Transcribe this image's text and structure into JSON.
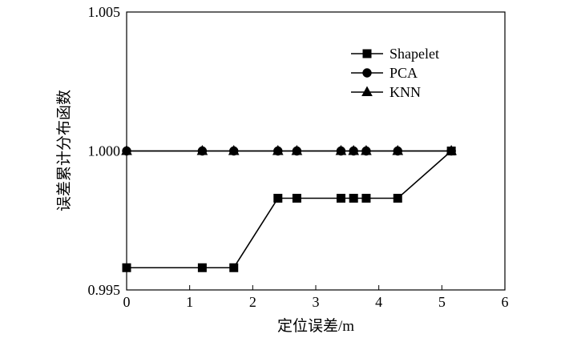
{
  "chart_data": {
    "type": "line",
    "xlabel": "定位误差/m",
    "ylabel": "误差累计分布函数",
    "xlim": [
      0,
      6
    ],
    "ylim": [
      0.995,
      1.005
    ],
    "x_ticks": [
      0,
      1,
      2,
      3,
      4,
      5,
      6
    ],
    "x_tick_labels": [
      "0",
      "1",
      "2",
      "3",
      "4",
      "5",
      "6"
    ],
    "y_ticks": [
      0.995,
      1.0,
      1.005
    ],
    "y_tick_labels": [
      "0.995",
      "1.000",
      "1.005"
    ],
    "grid": false,
    "legend_position": "top-right",
    "series": [
      {
        "name": "Shapelet",
        "marker": "square",
        "color": "#000000",
        "x": [
          0,
          1.2,
          1.7,
          2.4,
          2.7,
          3.4,
          3.6,
          3.8,
          4.3,
          5.15
        ],
        "y": [
          0.9958,
          0.9958,
          0.9958,
          0.9983,
          0.9983,
          0.9983,
          0.9983,
          0.9983,
          0.9983,
          1.0
        ]
      },
      {
        "name": "PCA",
        "marker": "circle",
        "color": "#000000",
        "x": [
          0,
          1.2,
          1.7,
          2.4,
          2.7,
          3.4,
          3.6,
          3.8,
          4.3,
          5.15
        ],
        "y": [
          1.0,
          1.0,
          1.0,
          1.0,
          1.0,
          1.0,
          1.0,
          1.0,
          1.0,
          1.0
        ]
      },
      {
        "name": "KNN",
        "marker": "triangle",
        "color": "#000000",
        "x": [
          0,
          1.2,
          1.7,
          2.4,
          2.7,
          3.4,
          3.6,
          3.8,
          4.3,
          5.15
        ],
        "y": [
          1.0,
          1.0,
          1.0,
          1.0,
          1.0,
          1.0,
          1.0,
          1.0,
          1.0,
          1.0
        ]
      }
    ]
  }
}
